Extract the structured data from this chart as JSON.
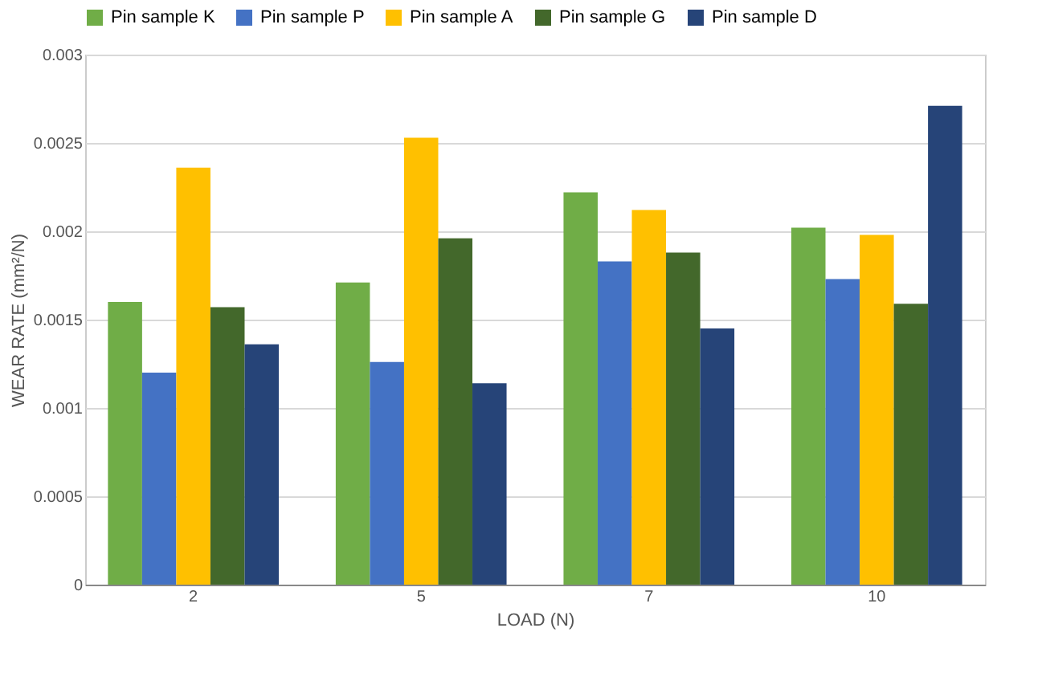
{
  "chart_data": {
    "type": "bar",
    "xlabel": "LOAD (N)",
    "ylabel": "WEAR RATE (mm²/N)",
    "categories": [
      "2",
      "5",
      "7",
      "10"
    ],
    "series": [
      {
        "name": "Pin sample K",
        "color": "#70ad47",
        "values": [
          0.0016,
          0.00171,
          0.00222,
          0.00202
        ]
      },
      {
        "name": "Pin sample P",
        "color": "#4472c4",
        "values": [
          0.0012,
          0.00126,
          0.00183,
          0.00173
        ]
      },
      {
        "name": "Pin sample A",
        "color": "#ffc000",
        "values": [
          0.00236,
          0.00253,
          0.00212,
          0.00198
        ]
      },
      {
        "name": "Pin sample G",
        "color": "#43682b",
        "values": [
          0.00157,
          0.00196,
          0.00188,
          0.00159
        ]
      },
      {
        "name": "Pin sample D",
        "color": "#264478",
        "values": [
          0.00136,
          0.00114,
          0.00145,
          0.00271
        ]
      }
    ],
    "ylim": [
      0,
      0.003
    ],
    "yticks": [
      0,
      0.0005,
      0.001,
      0.0015,
      0.002,
      0.0025,
      0.003
    ],
    "grid": "y",
    "legend": "top left"
  }
}
